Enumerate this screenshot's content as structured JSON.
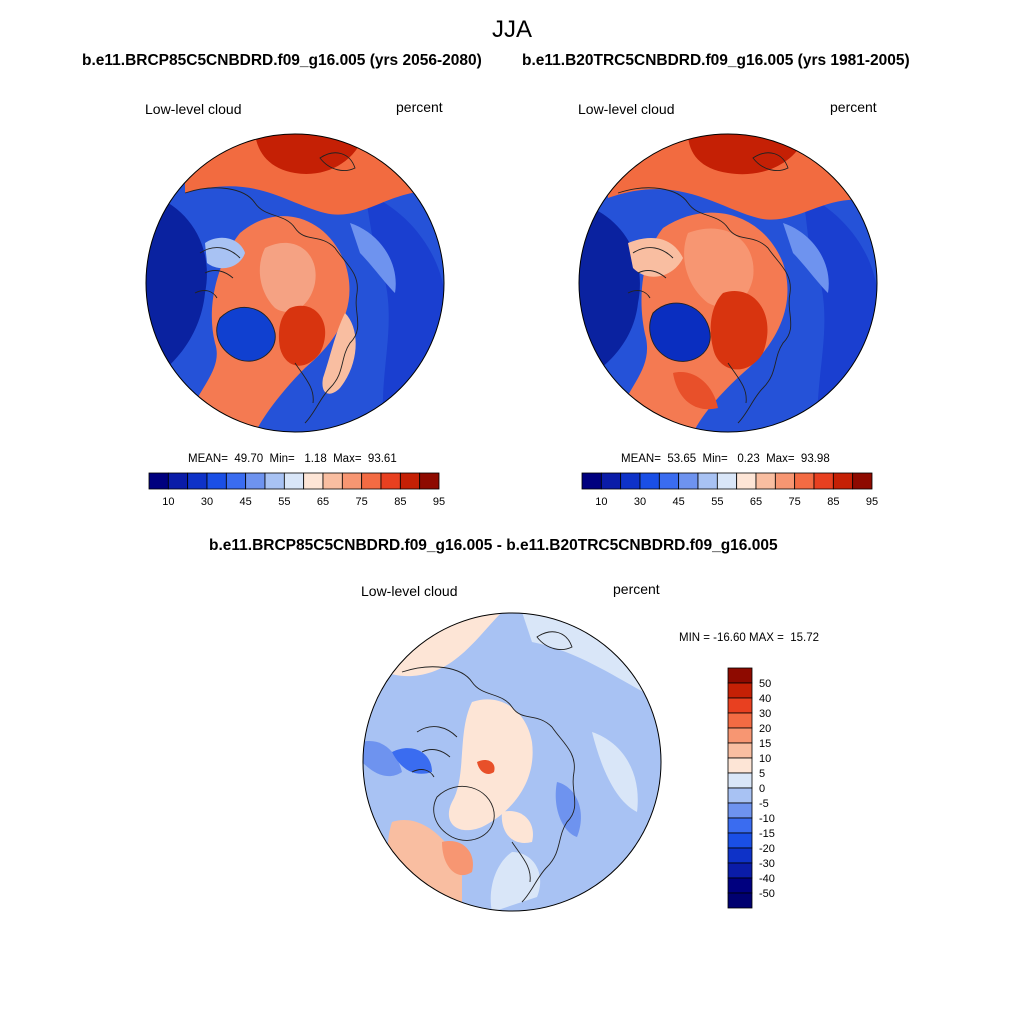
{
  "page": {
    "title": "JJA"
  },
  "panels": [
    {
      "title": "b.e11.BRCP85C5CNBDRD.f09_g16.005 (yrs 2056-2080)",
      "left_label": "Low-level cloud",
      "right_label": "percent",
      "stats": "MEAN=  49.70  Min=   1.18  Max=  93.61"
    },
    {
      "title": "b.e11.B20TRC5CNBDRD.f09_g16.005 (yrs 1981-2005)",
      "left_label": "Low-level cloud",
      "right_label": "percent",
      "stats": "MEAN=  53.65  Min=   0.23  Max=  93.98"
    },
    {
      "title": "b.e11.BRCP85C5CNBDRD.f09_g16.005 - b.e11.B20TRC5CNBDRD.f09_g16.005",
      "left_label": "Low-level cloud",
      "right_label": "percent",
      "stats": "MIN = -16.60 MAX =  15.72"
    }
  ],
  "colorbar_abs": {
    "tick_labels": [
      "10",
      "30",
      "45",
      "55",
      "65",
      "75",
      "85",
      "95"
    ],
    "colors": [
      "#00007f",
      "#0a1ca8",
      "#0e32c8",
      "#1a4fe6",
      "#3a6cf0",
      "#6e93ef",
      "#a8c2f3",
      "#d9e6f8",
      "#fde5d6",
      "#f9bea1",
      "#f79672",
      "#f36b43",
      "#e84020",
      "#c52005",
      "#8e0a00"
    ]
  },
  "colorbar_diff": {
    "tick_labels": [
      "50",
      "40",
      "30",
      "20",
      "15",
      "10",
      "5",
      "0",
      "-5",
      "-10",
      "-15",
      "-20",
      "-30",
      "-40",
      "-50"
    ],
    "colors": [
      "#8e0a00",
      "#c52005",
      "#e84020",
      "#f36b43",
      "#f79672",
      "#f9bea1",
      "#fde5d6",
      "#d9e6f8",
      "#a8c2f3",
      "#6e93ef",
      "#3a6cf0",
      "#1a4fe6",
      "#0e32c8",
      "#0a1ca8",
      "#00007f",
      "#000070"
    ]
  }
}
